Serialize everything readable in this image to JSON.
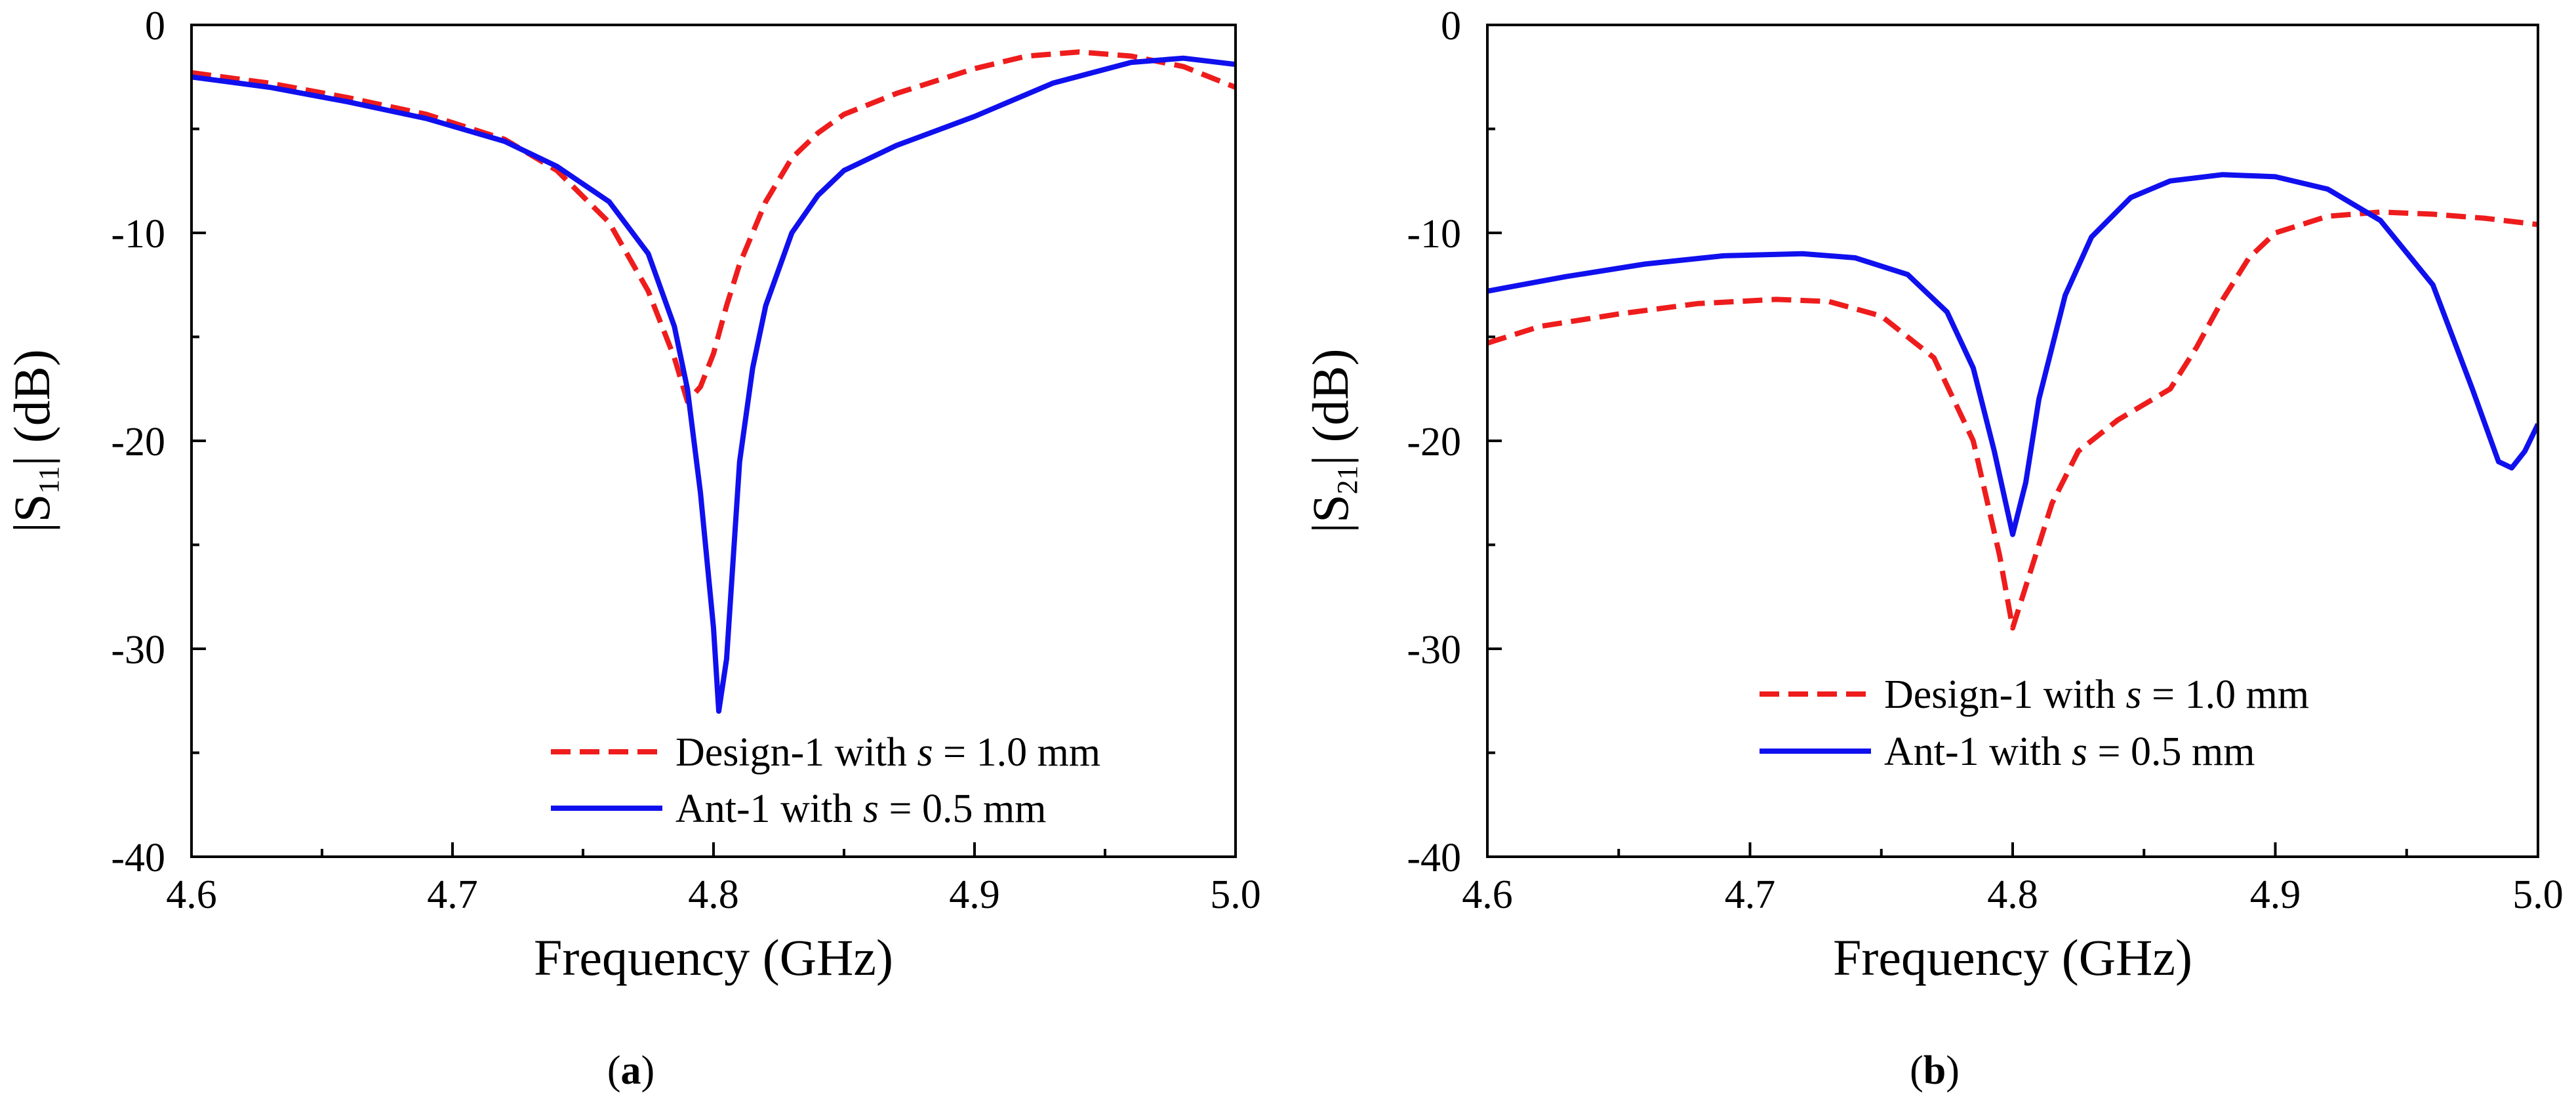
{
  "chart_data": [
    {
      "type": "line",
      "panel": "a",
      "caption_letter": "a",
      "xlabel": "Frequency (GHz)",
      "ylabel_parts": {
        "pre": "|S",
        "sub": "11",
        "post": "| (dB)"
      },
      "xlim": [
        4.6,
        5.0
      ],
      "ylim": [
        -40,
        0
      ],
      "xticks": [
        4.6,
        4.7,
        4.8,
        4.9,
        5.0
      ],
      "xtick_labels": [
        "4.6",
        "4.7",
        "4.8",
        "4.9",
        "5.0"
      ],
      "yticks": [
        0,
        -10,
        -20,
        -30,
        -40
      ],
      "ytick_labels": [
        "0",
        "-10",
        "-20",
        "-30",
        "-40"
      ],
      "legend_position": "bottom-right",
      "series": [
        {
          "name_parts": {
            "pre": "Design-1 with ",
            "var": "s",
            "post": " = 1.0 mm"
          },
          "color": "#ee1c1c",
          "style": "dashed",
          "points": [
            [
              4.6,
              -2.3
            ],
            [
              4.63,
              -2.8
            ],
            [
              4.66,
              -3.5
            ],
            [
              4.69,
              -4.3
            ],
            [
              4.72,
              -5.5
            ],
            [
              4.74,
              -7.0
            ],
            [
              4.76,
              -9.5
            ],
            [
              4.775,
              -12.8
            ],
            [
              4.785,
              -16.0
            ],
            [
              4.79,
              -18.1
            ],
            [
              4.795,
              -17.4
            ],
            [
              4.8,
              -15.8
            ],
            [
              4.805,
              -13.5
            ],
            [
              4.81,
              -11.5
            ],
            [
              4.82,
              -8.5
            ],
            [
              4.83,
              -6.4
            ],
            [
              4.84,
              -5.2
            ],
            [
              4.85,
              -4.3
            ],
            [
              4.87,
              -3.3
            ],
            [
              4.9,
              -2.1
            ],
            [
              4.92,
              -1.5
            ],
            [
              4.94,
              -1.3
            ],
            [
              4.96,
              -1.5
            ],
            [
              4.98,
              -2.0
            ],
            [
              5.0,
              -3.0
            ]
          ]
        },
        {
          "name_parts": {
            "pre": "Ant-1 with ",
            "var": "s",
            "post": " = 0.5 mm"
          },
          "color": "#1010ee",
          "style": "solid",
          "points": [
            [
              4.6,
              -2.5
            ],
            [
              4.63,
              -3.0
            ],
            [
              4.66,
              -3.7
            ],
            [
              4.69,
              -4.5
            ],
            [
              4.72,
              -5.6
            ],
            [
              4.74,
              -6.8
            ],
            [
              4.76,
              -8.5
            ],
            [
              4.775,
              -11.0
            ],
            [
              4.785,
              -14.5
            ],
            [
              4.79,
              -17.5
            ],
            [
              4.795,
              -22.5
            ],
            [
              4.8,
              -29.0
            ],
            [
              4.802,
              -33.0
            ],
            [
              4.805,
              -30.5
            ],
            [
              4.81,
              -21.0
            ],
            [
              4.815,
              -16.5
            ],
            [
              4.82,
              -13.5
            ],
            [
              4.83,
              -10.0
            ],
            [
              4.84,
              -8.2
            ],
            [
              4.85,
              -7.0
            ],
            [
              4.87,
              -5.8
            ],
            [
              4.9,
              -4.4
            ],
            [
              4.93,
              -2.8
            ],
            [
              4.96,
              -1.8
            ],
            [
              4.98,
              -1.6
            ],
            [
              5.0,
              -1.9
            ]
          ]
        }
      ]
    },
    {
      "type": "line",
      "panel": "b",
      "caption_letter": "b",
      "xlabel": "Frequency (GHz)",
      "ylabel_parts": {
        "pre": "|S",
        "sub": "21",
        "post": "| (dB)"
      },
      "xlim": [
        4.6,
        5.0
      ],
      "ylim": [
        -40,
        0
      ],
      "xticks": [
        4.6,
        4.7,
        4.8,
        4.9,
        5.0
      ],
      "xtick_labels": [
        "4.6",
        "4.7",
        "4.8",
        "4.9",
        "5.0"
      ],
      "yticks": [
        0,
        -10,
        -20,
        -30,
        -40
      ],
      "ytick_labels": [
        "0",
        "-10",
        "-20",
        "-30",
        "-40"
      ],
      "legend_position": "center-right",
      "series": [
        {
          "name_parts": {
            "pre": "Design-1 with ",
            "var": "s",
            "post": " = 1.0 mm"
          },
          "color": "#ee1c1c",
          "style": "dashed",
          "points": [
            [
              4.6,
              -15.3
            ],
            [
              4.62,
              -14.5
            ],
            [
              4.65,
              -13.9
            ],
            [
              4.68,
              -13.4
            ],
            [
              4.71,
              -13.2
            ],
            [
              4.73,
              -13.3
            ],
            [
              4.75,
              -14.0
            ],
            [
              4.77,
              -16.0
            ],
            [
              4.785,
              -20.0
            ],
            [
              4.795,
              -25.5
            ],
            [
              4.8,
              -29.0
            ],
            [
              4.805,
              -27.0
            ],
            [
              4.815,
              -23.0
            ],
            [
              4.825,
              -20.5
            ],
            [
              4.84,
              -19.0
            ],
            [
              4.86,
              -17.5
            ],
            [
              4.87,
              -15.5
            ],
            [
              4.88,
              -13.2
            ],
            [
              4.89,
              -11.2
            ],
            [
              4.9,
              -10.0
            ],
            [
              4.92,
              -9.2
            ],
            [
              4.94,
              -9.0
            ],
            [
              4.96,
              -9.1
            ],
            [
              4.98,
              -9.3
            ],
            [
              5.0,
              -9.6
            ]
          ]
        },
        {
          "name_parts": {
            "pre": "Ant-1 with ",
            "var": "s",
            "post": " = 0.5 mm"
          },
          "color": "#1010ee",
          "style": "solid",
          "points": [
            [
              4.6,
              -12.8
            ],
            [
              4.63,
              -12.1
            ],
            [
              4.66,
              -11.5
            ],
            [
              4.69,
              -11.1
            ],
            [
              4.72,
              -11.0
            ],
            [
              4.74,
              -11.2
            ],
            [
              4.76,
              -12.0
            ],
            [
              4.775,
              -13.8
            ],
            [
              4.785,
              -16.5
            ],
            [
              4.793,
              -20.5
            ],
            [
              4.8,
              -24.5
            ],
            [
              4.805,
              -22.0
            ],
            [
              4.81,
              -18.0
            ],
            [
              4.82,
              -13.0
            ],
            [
              4.83,
              -10.2
            ],
            [
              4.845,
              -8.3
            ],
            [
              4.86,
              -7.5
            ],
            [
              4.88,
              -7.2
            ],
            [
              4.9,
              -7.3
            ],
            [
              4.92,
              -7.9
            ],
            [
              4.94,
              -9.4
            ],
            [
              4.96,
              -12.5
            ],
            [
              4.975,
              -17.5
            ],
            [
              4.985,
              -21.0
            ],
            [
              4.99,
              -21.3
            ],
            [
              4.995,
              -20.5
            ],
            [
              5.0,
              -19.2
            ]
          ]
        }
      ]
    }
  ]
}
